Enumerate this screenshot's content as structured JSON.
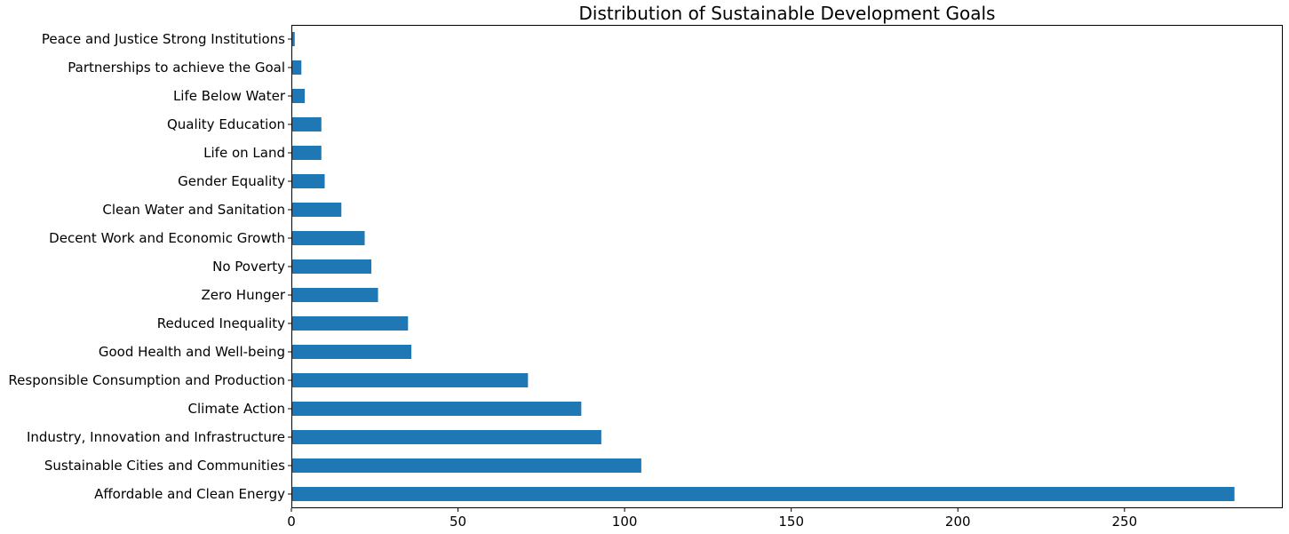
{
  "chart_data": {
    "type": "bar",
    "orientation": "horizontal",
    "title": "Distribution of Sustainable Development Goals",
    "xlabel": "",
    "ylabel": "",
    "bar_color": "#1f77b4",
    "grid": false,
    "xlim": [
      0,
      297.5
    ],
    "xticks": [
      0,
      50,
      100,
      150,
      200,
      250
    ],
    "categories": [
      "Affordable and Clean Energy",
      "Sustainable Cities and Communities",
      "Industry, Innovation and Infrastructure",
      "Climate Action",
      "Responsible Consumption and Production",
      "Good Health and Well-being",
      "Reduced Inequality",
      "Zero Hunger",
      "No Poverty",
      "Decent Work and Economic Growth",
      "Clean Water and Sanitation",
      "Gender Equality",
      "Life on Land",
      "Quality Education",
      "Life Below Water",
      "Partnerships to achieve the Goal",
      "Peace and Justice Strong Institutions"
    ],
    "values": [
      283,
      105,
      93,
      87,
      71,
      36,
      35,
      26,
      24,
      22,
      15,
      10,
      9,
      9,
      4,
      3,
      1
    ]
  }
}
